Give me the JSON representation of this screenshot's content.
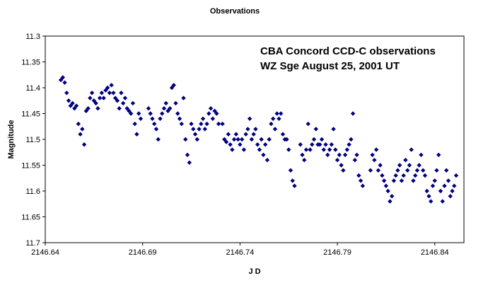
{
  "chart_data": {
    "type": "scatter",
    "title": "Observations",
    "xlabel": "J D",
    "ylabel": "Magnitude",
    "xlim": [
      2146.64,
      2146.855
    ],
    "ylim": [
      11.3,
      11.7
    ],
    "y_inverted": true,
    "x_ticks": [
      "2146.64",
      "2146.69",
      "2146.74",
      "2146.79",
      "2146.84"
    ],
    "y_ticks": [
      "11.3",
      "11.35",
      "11.4",
      "11.45",
      "11.5",
      "11.55",
      "11.6",
      "11.65",
      "11.7"
    ],
    "annotation": [
      "CBA Concord CCD-C observations",
      "WZ Sge August 25, 2001 UT"
    ],
    "grid": false,
    "legend": "none",
    "marker": "diamond",
    "marker_color": "#000080",
    "series": [
      {
        "points": [
          [
            2146.648,
            11.385
          ],
          [
            2146.649,
            11.38
          ],
          [
            2146.65,
            11.39
          ],
          [
            2146.651,
            11.41
          ],
          [
            2146.652,
            11.425
          ],
          [
            2146.653,
            11.435
          ],
          [
            2146.654,
            11.43
          ],
          [
            2146.655,
            11.44
          ],
          [
            2146.656,
            11.435
          ],
          [
            2146.657,
            11.47
          ],
          [
            2146.658,
            11.49
          ],
          [
            2146.659,
            11.48
          ],
          [
            2146.66,
            11.51
          ],
          [
            2146.661,
            11.445
          ],
          [
            2146.662,
            11.44
          ],
          [
            2146.663,
            11.42
          ],
          [
            2146.664,
            11.41
          ],
          [
            2146.665,
            11.425
          ],
          [
            2146.666,
            11.43
          ],
          [
            2146.667,
            11.44
          ],
          [
            2146.668,
            11.42
          ],
          [
            2146.669,
            11.41
          ],
          [
            2146.67,
            11.42
          ],
          [
            2146.671,
            11.405
          ],
          [
            2146.672,
            11.4
          ],
          [
            2146.673,
            11.41
          ],
          [
            2146.674,
            11.395
          ],
          [
            2146.675,
            11.41
          ],
          [
            2146.676,
            11.42
          ],
          [
            2146.677,
            11.425
          ],
          [
            2146.678,
            11.44
          ],
          [
            2146.679,
            11.41
          ],
          [
            2146.68,
            11.43
          ],
          [
            2146.681,
            11.42
          ],
          [
            2146.682,
            11.44
          ],
          [
            2146.683,
            11.445
          ],
          [
            2146.684,
            11.45
          ],
          [
            2146.685,
            11.43
          ],
          [
            2146.686,
            11.47
          ],
          [
            2146.687,
            11.49
          ],
          [
            2146.688,
            11.45
          ],
          [
            2146.689,
            11.46
          ],
          [
            2146.693,
            11.44
          ],
          [
            2146.694,
            11.45
          ],
          [
            2146.695,
            11.46
          ],
          [
            2146.696,
            11.47
          ],
          [
            2146.697,
            11.48
          ],
          [
            2146.698,
            11.5
          ],
          [
            2146.699,
            11.46
          ],
          [
            2146.7,
            11.45
          ],
          [
            2146.701,
            11.44
          ],
          [
            2146.702,
            11.43
          ],
          [
            2146.703,
            11.445
          ],
          [
            2146.704,
            11.44
          ],
          [
            2146.705,
            11.4
          ],
          [
            2146.706,
            11.395
          ],
          [
            2146.707,
            11.43
          ],
          [
            2146.708,
            11.45
          ],
          [
            2146.709,
            11.46
          ],
          [
            2146.71,
            11.47
          ],
          [
            2146.711,
            11.42
          ],
          [
            2146.712,
            11.5
          ],
          [
            2146.713,
            11.53
          ],
          [
            2146.714,
            11.545
          ],
          [
            2146.715,
            11.47
          ],
          [
            2146.716,
            11.48
          ],
          [
            2146.717,
            11.49
          ],
          [
            2146.718,
            11.5
          ],
          [
            2146.719,
            11.48
          ],
          [
            2146.72,
            11.47
          ],
          [
            2146.721,
            11.46
          ],
          [
            2146.722,
            11.48
          ],
          [
            2146.723,
            11.47
          ],
          [
            2146.724,
            11.45
          ],
          [
            2146.725,
            11.44
          ],
          [
            2146.726,
            11.46
          ],
          [
            2146.727,
            11.445
          ],
          [
            2146.728,
            11.45
          ],
          [
            2146.729,
            11.47
          ],
          [
            2146.731,
            11.47
          ],
          [
            2146.732,
            11.5
          ],
          [
            2146.733,
            11.505
          ],
          [
            2146.734,
            11.49
          ],
          [
            2146.735,
            11.51
          ],
          [
            2146.736,
            11.52
          ],
          [
            2146.737,
            11.5
          ],
          [
            2146.738,
            11.49
          ],
          [
            2146.739,
            11.5
          ],
          [
            2146.74,
            11.51
          ],
          [
            2146.741,
            11.5
          ],
          [
            2146.742,
            11.52
          ],
          [
            2146.743,
            11.49
          ],
          [
            2146.744,
            11.48
          ],
          [
            2146.745,
            11.46
          ],
          [
            2146.746,
            11.5
          ],
          [
            2146.747,
            11.49
          ],
          [
            2146.748,
            11.48
          ],
          [
            2146.749,
            11.51
          ],
          [
            2146.75,
            11.52
          ],
          [
            2146.751,
            11.5
          ],
          [
            2146.752,
            11.53
          ],
          [
            2146.753,
            11.51
          ],
          [
            2146.754,
            11.54
          ],
          [
            2146.755,
            11.5
          ],
          [
            2146.756,
            11.47
          ],
          [
            2146.757,
            11.46
          ],
          [
            2146.758,
            11.48
          ],
          [
            2146.759,
            11.45
          ],
          [
            2146.76,
            11.46
          ],
          [
            2146.761,
            11.45
          ],
          [
            2146.762,
            11.49
          ],
          [
            2146.763,
            11.5
          ],
          [
            2146.764,
            11.5
          ],
          [
            2146.765,
            11.52
          ],
          [
            2146.766,
            11.56
          ],
          [
            2146.767,
            11.58
          ],
          [
            2146.768,
            11.59
          ],
          [
            2146.771,
            11.51
          ],
          [
            2146.772,
            11.53
          ],
          [
            2146.773,
            11.54
          ],
          [
            2146.774,
            11.52
          ],
          [
            2146.775,
            11.47
          ],
          [
            2146.776,
            11.52
          ],
          [
            2146.777,
            11.51
          ],
          [
            2146.778,
            11.5
          ],
          [
            2146.779,
            11.48
          ],
          [
            2146.78,
            11.51
          ],
          [
            2146.781,
            11.51
          ],
          [
            2146.782,
            11.5
          ],
          [
            2146.783,
            11.52
          ],
          [
            2146.784,
            11.51
          ],
          [
            2146.785,
            11.53
          ],
          [
            2146.786,
            11.52
          ],
          [
            2146.787,
            11.51
          ],
          [
            2146.788,
            11.48
          ],
          [
            2146.789,
            11.52
          ],
          [
            2146.79,
            11.54
          ],
          [
            2146.791,
            11.53
          ],
          [
            2146.792,
            11.55
          ],
          [
            2146.793,
            11.56
          ],
          [
            2146.794,
            11.53
          ],
          [
            2146.795,
            11.52
          ],
          [
            2146.796,
            11.51
          ],
          [
            2146.797,
            11.5
          ],
          [
            2146.798,
            11.45
          ],
          [
            2146.799,
            11.54
          ],
          [
            2146.8,
            11.53
          ],
          [
            2146.801,
            11.57
          ],
          [
            2146.802,
            11.58
          ],
          [
            2146.803,
            11.59
          ],
          [
            2146.807,
            11.56
          ],
          [
            2146.808,
            11.53
          ],
          [
            2146.809,
            11.54
          ],
          [
            2146.81,
            11.52
          ],
          [
            2146.811,
            11.56
          ],
          [
            2146.812,
            11.55
          ],
          [
            2146.813,
            11.57
          ],
          [
            2146.814,
            11.58
          ],
          [
            2146.815,
            11.59
          ],
          [
            2146.816,
            11.6
          ],
          [
            2146.817,
            11.62
          ],
          [
            2146.818,
            11.61
          ],
          [
            2146.819,
            11.58
          ],
          [
            2146.82,
            11.57
          ],
          [
            2146.821,
            11.56
          ],
          [
            2146.822,
            11.55
          ],
          [
            2146.823,
            11.58
          ],
          [
            2146.824,
            11.57
          ],
          [
            2146.825,
            11.54
          ],
          [
            2146.826,
            11.56
          ],
          [
            2146.827,
            11.55
          ],
          [
            2146.828,
            11.52
          ],
          [
            2146.829,
            11.58
          ],
          [
            2146.83,
            11.57
          ],
          [
            2146.831,
            11.56
          ],
          [
            2146.832,
            11.55
          ],
          [
            2146.833,
            11.53
          ],
          [
            2146.834,
            11.56
          ],
          [
            2146.835,
            11.57
          ],
          [
            2146.836,
            11.6
          ],
          [
            2146.837,
            11.61
          ],
          [
            2146.838,
            11.62
          ],
          [
            2146.839,
            11.59
          ],
          [
            2146.84,
            11.58
          ],
          [
            2146.841,
            11.56
          ],
          [
            2146.842,
            11.53
          ],
          [
            2146.843,
            11.6
          ],
          [
            2146.844,
            11.62
          ],
          [
            2146.845,
            11.59
          ],
          [
            2146.846,
            11.56
          ],
          [
            2146.847,
            11.58
          ],
          [
            2146.848,
            11.61
          ],
          [
            2146.849,
            11.6
          ],
          [
            2146.85,
            11.59
          ],
          [
            2146.851,
            11.57
          ]
        ]
      }
    ]
  }
}
